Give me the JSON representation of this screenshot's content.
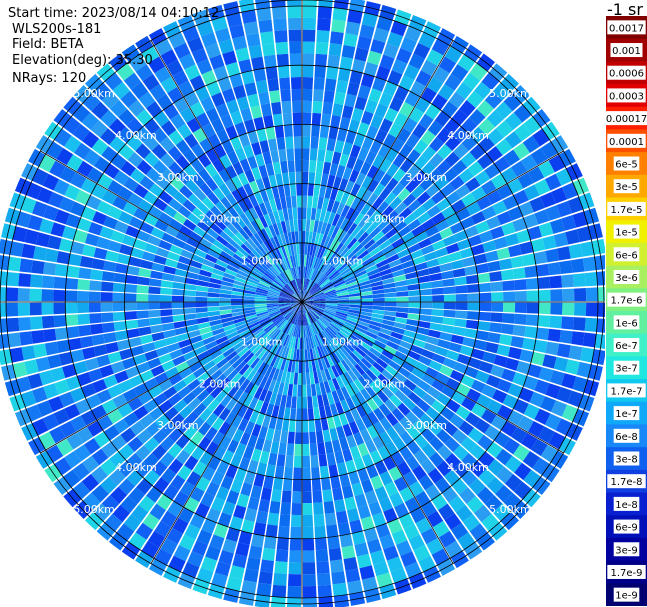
{
  "header": {
    "start_time": "Start time: 2023/08/14 04:10:12",
    "instrument": "WLS200s-181",
    "field": "Field: BETA",
    "elevation": "Elevation(deg): 35.30",
    "nrays": "NRays: 120"
  },
  "colorbar": {
    "title": "-1 sr",
    "labels": [
      "0.0017",
      "0.001",
      "0.0006",
      "0.0003",
      "0.00017",
      "0.0001",
      "6e-5",
      "3e-5",
      "1.7e-5",
      "1e-5",
      "6e-6",
      "3e-6",
      "1.7e-6",
      "1e-6",
      "6e-7",
      "3e-7",
      "1.7e-7",
      "1e-7",
      "6e-8",
      "3e-8",
      "1.7e-8",
      "1e-8",
      "6e-9",
      "3e-9",
      "1.7e-9",
      "1e-9"
    ],
    "colors": [
      "#800000",
      "#a00000",
      "#c00000",
      "#e00000",
      "#ff2000",
      "#ff5000",
      "#ff8000",
      "#ffa800",
      "#ffd000",
      "#f0f000",
      "#d0f030",
      "#a8f060",
      "#80f080",
      "#60f0a0",
      "#40f0c8",
      "#20e8e0",
      "#10c8f0",
      "#10a8f8",
      "#1888f8",
      "#1060f0",
      "#1040e0",
      "#0820d0",
      "#0010b8",
      "#0000a0",
      "#000088",
      "#000070"
    ]
  },
  "chart_data": {
    "type": "heatmap",
    "title": "",
    "projection": "polar (PPI scan)",
    "field": "BETA",
    "units": "-1 sr",
    "n_rays": 120,
    "elevation_deg": 35.3,
    "range_rings_km": [
      1.0,
      2.0,
      3.0,
      4.0,
      5.0
    ],
    "range_ring_labels": [
      "1.00km",
      "2.00km",
      "3.00km",
      "4.00km",
      "5.00km"
    ],
    "azimuth_lines_deg": [
      0,
      30,
      60,
      90,
      120,
      150,
      180,
      210,
      240,
      270,
      300,
      330
    ],
    "max_range_km": 5.2,
    "typical_value_range": [
      1e-08,
      1e-07
    ]
  }
}
